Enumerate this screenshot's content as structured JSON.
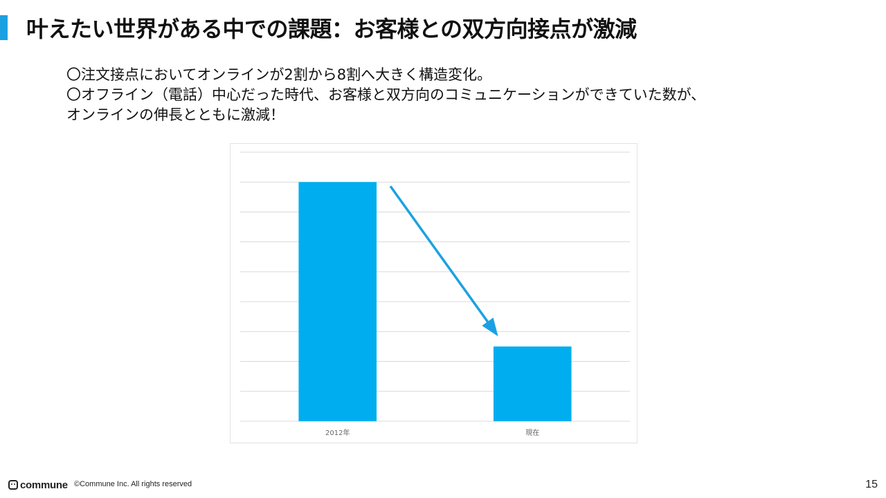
{
  "slide": {
    "title": "叶えたい世界がある中での課題：お客様との双方向接点が激減",
    "bullets": [
      "〇注文接点においてオンラインが2割から8割へ大きく構造変化。",
      "〇オフライン（電話）中心だった時代、お客様と双方向のコミュニケーションができていた数が、",
      "オンラインの伸長とともに激減！"
    ],
    "accent_color": "#1ba1e2"
  },
  "chart_data": {
    "type": "bar",
    "categories": [
      "2012年",
      "現在"
    ],
    "values": [
      8,
      2.5
    ],
    "ylim": [
      0,
      9
    ],
    "grid": true,
    "bar_color": "#00aeef",
    "annotation": {
      "type": "arrow",
      "from": "2012年",
      "to": "現在",
      "color": "#1ba1e2"
    }
  },
  "footer": {
    "logo": "commune",
    "copyright": "©Commune Inc. All rights reserved",
    "page_number": "15"
  }
}
